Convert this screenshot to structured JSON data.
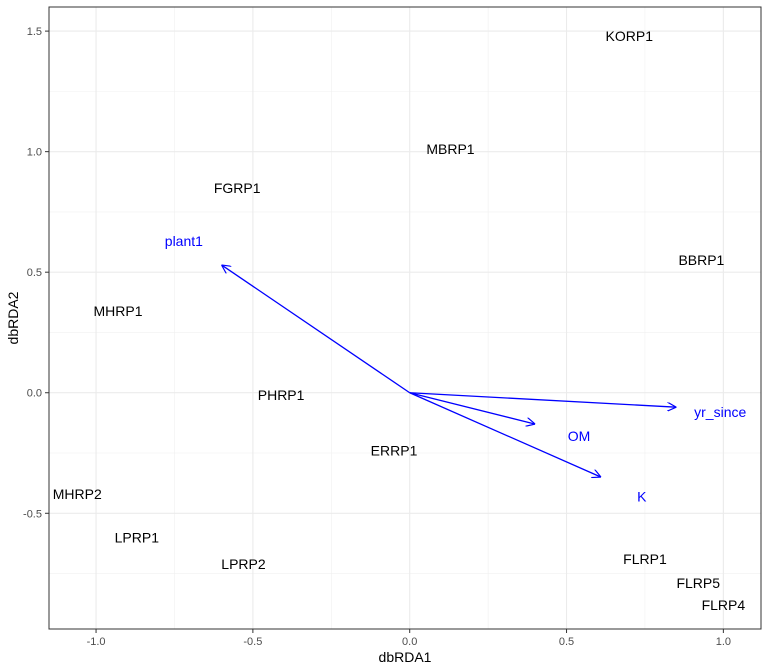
{
  "chart_data": {
    "type": "scatter",
    "xlabel": "dbRDA1",
    "ylabel": "dbRDA2",
    "xlim": [
      -1.15,
      1.12
    ],
    "ylim": [
      -0.98,
      1.6
    ],
    "x_ticks": [
      -1.0,
      -0.5,
      0.0,
      0.5,
      1.0
    ],
    "x_tick_labels": [
      "-1.0",
      "-0.5",
      "0.0",
      "0.5",
      "1.0"
    ],
    "y_ticks": [
      -0.5,
      0.0,
      0.5,
      1.0,
      1.5
    ],
    "y_tick_labels": [
      "-0.5",
      "0.0",
      "0.5",
      "1.0",
      "1.5"
    ],
    "grid": true,
    "site_color": "#000000",
    "vector_color": "#0000ff",
    "sites": [
      {
        "label": "KORP1",
        "x": 0.7,
        "y": 1.48
      },
      {
        "label": "MBRP1",
        "x": 0.13,
        "y": 1.01
      },
      {
        "label": "FGRP1",
        "x": -0.55,
        "y": 0.85
      },
      {
        "label": "BBRP1",
        "x": 0.93,
        "y": 0.55
      },
      {
        "label": "MHRP1",
        "x": -0.93,
        "y": 0.34
      },
      {
        "label": "PHRP1",
        "x": -0.41,
        "y": -0.01
      },
      {
        "label": "ERRP1",
        "x": -0.05,
        "y": -0.24
      },
      {
        "label": "MHRP2",
        "x": -1.06,
        "y": -0.42
      },
      {
        "label": "LPRP1",
        "x": -0.87,
        "y": -0.6
      },
      {
        "label": "LPRP2",
        "x": -0.53,
        "y": -0.71
      },
      {
        "label": "FLRP1",
        "x": 0.75,
        "y": -0.69
      },
      {
        "label": "FLRP5",
        "x": 0.92,
        "y": -0.79
      },
      {
        "label": "FLRP4",
        "x": 1.0,
        "y": -0.88
      }
    ],
    "vectors": [
      {
        "name": "plant1",
        "x": -0.6,
        "y": 0.53,
        "label_x": -0.72,
        "label_y": 0.63
      },
      {
        "name": "yr_since",
        "x": 0.85,
        "y": -0.06,
        "label_x": 0.99,
        "label_y": -0.08
      },
      {
        "name": "OM",
        "x": 0.4,
        "y": -0.13,
        "label_x": 0.54,
        "label_y": -0.18
      },
      {
        "name": "K",
        "x": 0.61,
        "y": -0.35,
        "label_x": 0.74,
        "label_y": -0.43
      }
    ]
  }
}
